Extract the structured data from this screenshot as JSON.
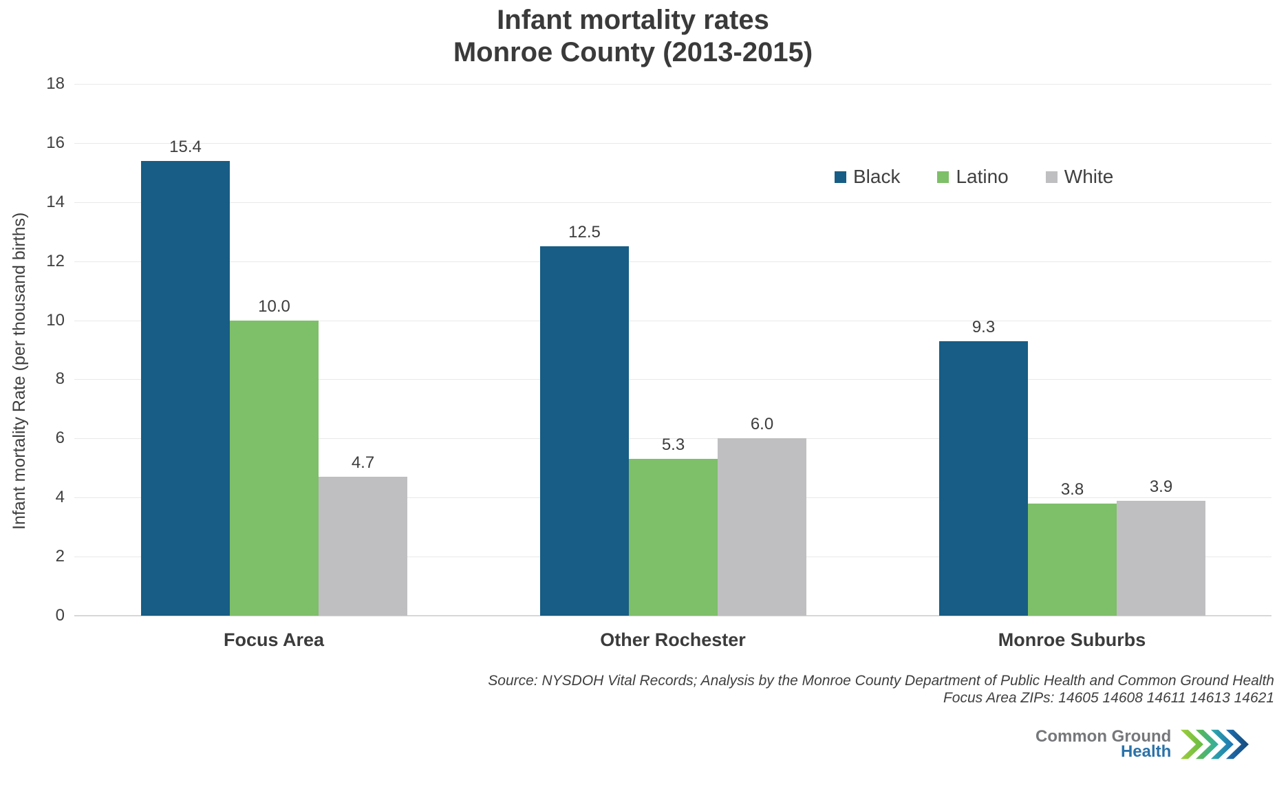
{
  "title": {
    "line1": "Infant mortality rates",
    "line2": "Monroe County (2013-2015)"
  },
  "chart_data": {
    "type": "bar",
    "title": "Infant mortality rates Monroe County (2013-2015)",
    "categories": [
      "Focus Area",
      "Other Rochester",
      "Monroe Suburbs"
    ],
    "series": [
      {
        "name": "Black",
        "color": "#175d85",
        "values": [
          15.4,
          12.5,
          9.3
        ]
      },
      {
        "name": "Latino",
        "color": "#7ebf69",
        "values": [
          10.0,
          5.3,
          3.8
        ]
      },
      {
        "name": "White",
        "color": "#bfbfc1",
        "values": [
          4.7,
          6.0,
          3.9
        ]
      }
    ],
    "xlabel": "",
    "ylabel": "Infant mortality Rate (per thousand births)",
    "ylim": [
      0,
      18
    ],
    "ytick_step": 2,
    "grid": true,
    "legend_position": "top-right",
    "value_label_format": "one_decimal"
  },
  "source": {
    "line1": "Source: NYSDOH Vital Records; Analysis by the Monroe County Department of Public Health and Common Ground Health",
    "line2": "Focus Area ZIPs: 14605 14608 14611 14613 14621"
  },
  "logo": {
    "line1": "Common Ground",
    "line2": "Health",
    "text_color": "#76777a",
    "health_color": "#2b72a8",
    "chevron_colors": [
      "#a4ce39",
      "#62bb46",
      "#2fada7",
      "#1f72b5",
      "#15497a"
    ]
  }
}
